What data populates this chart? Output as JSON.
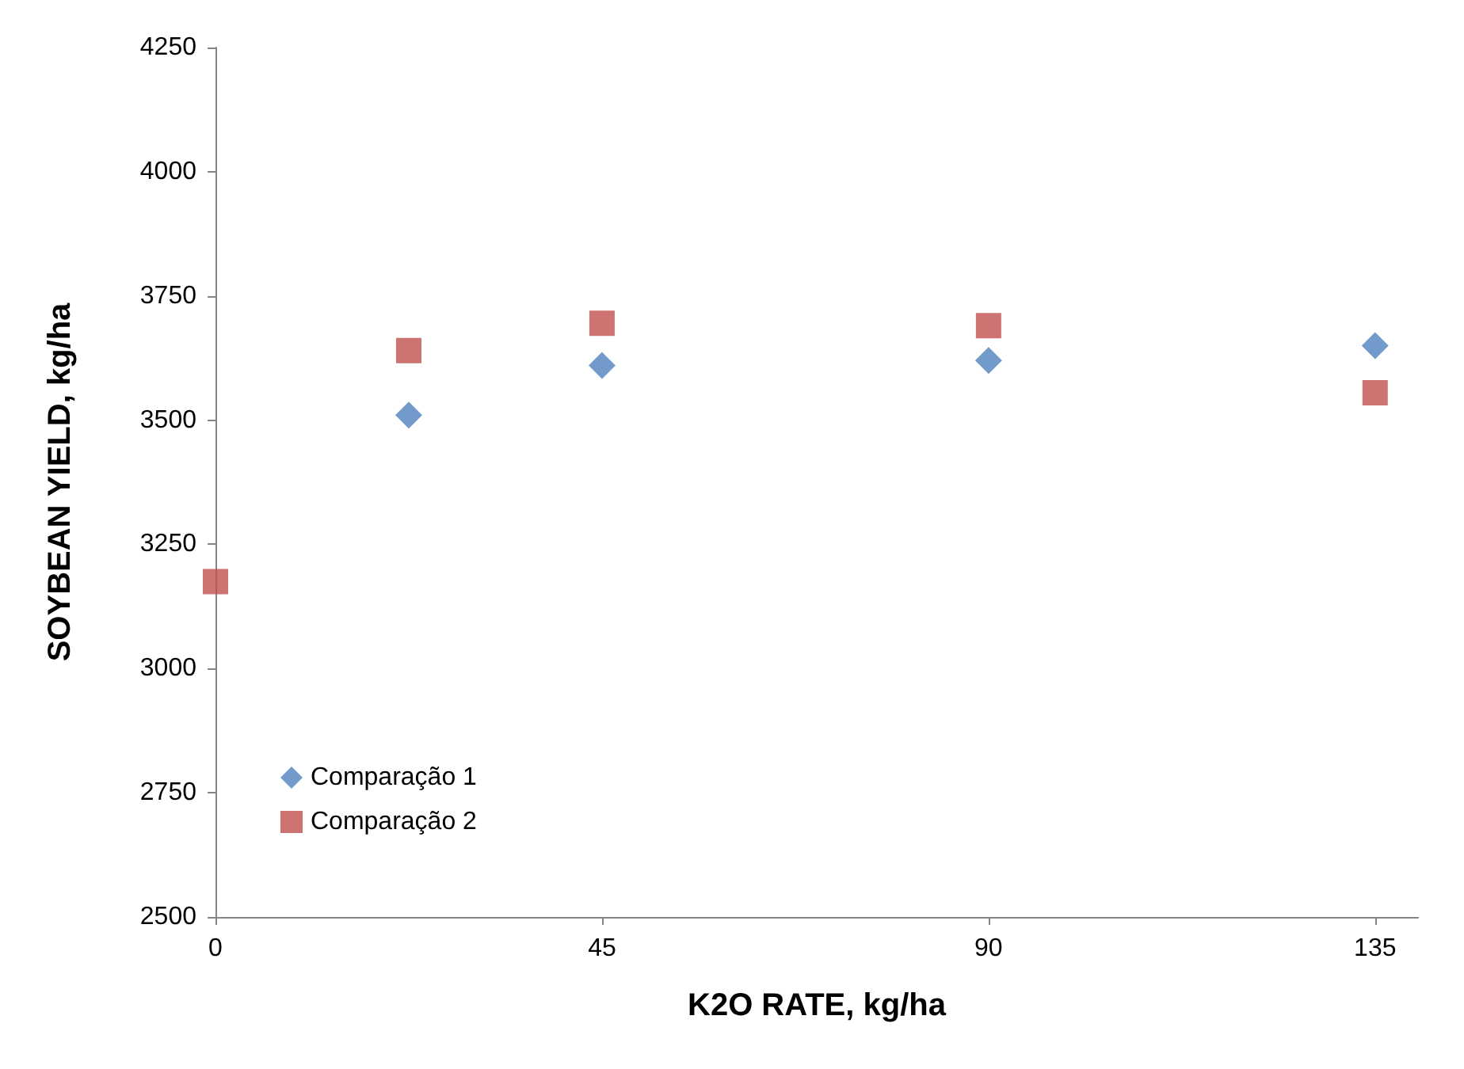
{
  "chart_data": {
    "type": "scatter",
    "xlabel": "K2O RATE, kg/ha",
    "ylabel": "SOYBEAN YIELD, kg/ha",
    "xlim": [
      0,
      140
    ],
    "xticks": [
      0,
      45,
      90,
      135
    ],
    "ylim": [
      2500,
      4250
    ],
    "yticks": [
      2500,
      2750,
      3000,
      3250,
      3500,
      3750,
      4000,
      4250
    ],
    "grid": false,
    "legend": "bottom left",
    "series": [
      {
        "name": "Comparação 1",
        "color": "#4f81bd",
        "marker": "diamond",
        "x": [
          22.5,
          45,
          90,
          135
        ],
        "values": [
          3510,
          3610,
          3620,
          3650
        ]
      },
      {
        "name": "Comparação 2",
        "color": "#c0504d",
        "marker": "square",
        "x": [
          0,
          22.5,
          45,
          90,
          135
        ],
        "values": [
          3175,
          3640,
          3695,
          3690,
          3555
        ]
      }
    ]
  }
}
